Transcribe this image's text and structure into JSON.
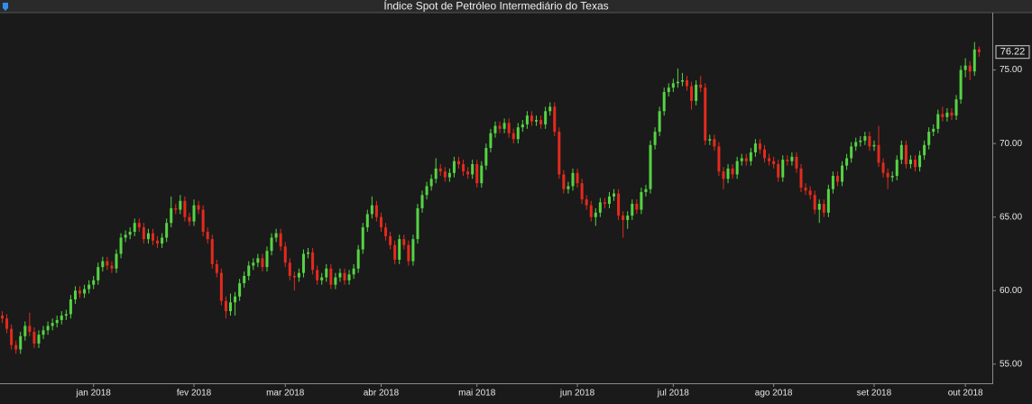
{
  "chart_data": {
    "type": "candlestick",
    "title": "Índice Spot de Petróleo Intermediário do Texas",
    "up_color": "#55d444",
    "down_color": "#e42a1d",
    "ylim": [
      53.7,
      78.9
    ],
    "yticks": [
      {
        "value": 55,
        "label": "55.00"
      },
      {
        "value": 60,
        "label": "60.00"
      },
      {
        "value": 65,
        "label": "65.00"
      },
      {
        "value": 70,
        "label": "70.00"
      },
      {
        "value": 75,
        "label": "75.00"
      }
    ],
    "categories": [
      null,
      null,
      null,
      null,
      null,
      null,
      null,
      null,
      null,
      null,
      null,
      null,
      null,
      null,
      null,
      null,
      null,
      null,
      null,
      null,
      "jan 2018",
      null,
      null,
      null,
      null,
      null,
      null,
      null,
      null,
      null,
      null,
      null,
      null,
      null,
      null,
      null,
      null,
      null,
      null,
      null,
      null,
      null,
      "fev 2018",
      null,
      null,
      null,
      null,
      null,
      null,
      null,
      null,
      null,
      null,
      null,
      null,
      null,
      null,
      null,
      null,
      null,
      null,
      null,
      "mar 2018",
      null,
      null,
      null,
      null,
      null,
      null,
      null,
      null,
      null,
      null,
      null,
      null,
      null,
      null,
      null,
      null,
      null,
      null,
      null,
      null,
      "abr 2018",
      null,
      null,
      null,
      null,
      null,
      null,
      null,
      null,
      null,
      null,
      null,
      null,
      null,
      null,
      null,
      null,
      null,
      null,
      null,
      null,
      "mai 2018",
      null,
      null,
      null,
      null,
      null,
      null,
      null,
      null,
      null,
      null,
      null,
      null,
      null,
      null,
      null,
      null,
      null,
      null,
      null,
      null,
      null,
      "jun 2018",
      null,
      null,
      null,
      null,
      null,
      null,
      null,
      null,
      null,
      null,
      null,
      null,
      null,
      null,
      null,
      null,
      null,
      null,
      null,
      null,
      "jul 2018",
      null,
      null,
      null,
      null,
      null,
      null,
      null,
      null,
      null,
      null,
      null,
      null,
      null,
      null,
      null,
      null,
      null,
      null,
      null,
      null,
      null,
      "ago 2018",
      null,
      null,
      null,
      null,
      null,
      null,
      null,
      null,
      null,
      null,
      null,
      null,
      null,
      null,
      null,
      null,
      null,
      null,
      null,
      null,
      null,
      "set 2018",
      null,
      null,
      null,
      null,
      null,
      null,
      null,
      null,
      null,
      null,
      null,
      null,
      null,
      null,
      null,
      null,
      null,
      null,
      null,
      "out 2018",
      null,
      null,
      null
    ],
    "open": [
      58.3,
      58.1,
      57.4,
      56.3,
      56.0,
      56.9,
      57.6,
      57.2,
      56.4,
      57.0,
      57.3,
      57.6,
      57.8,
      58.0,
      58.3,
      58.4,
      59.4,
      60.0,
      59.8,
      60.1,
      60.4,
      60.7,
      61.6,
      62.0,
      61.7,
      61.5,
      62.5,
      63.6,
      63.8,
      64.0,
      64.6,
      64.3,
      63.5,
      63.9,
      63.4,
      63.2,
      63.6,
      64.6,
      65.6,
      65.5,
      66.1,
      65.0,
      64.7,
      65.8,
      65.5,
      64.0,
      63.5,
      61.8,
      61.2,
      59.3,
      58.6,
      59.2,
      59.6,
      60.5,
      61.0,
      61.7,
      61.9,
      62.2,
      61.6,
      62.7,
      63.6,
      63.9,
      63.0,
      61.9,
      61.0,
      60.9,
      61.2,
      62.5,
      62.6,
      61.4,
      60.7,
      60.9,
      61.5,
      60.4,
      60.9,
      61.2,
      60.7,
      61.1,
      61.5,
      62.8,
      64.3,
      65.2,
      65.8,
      65.0,
      64.3,
      63.7,
      63.1,
      62.1,
      63.5,
      63.1,
      62.0,
      63.5,
      65.6,
      66.5,
      67.1,
      67.6,
      68.3,
      68.1,
      67.7,
      68.0,
      68.8,
      68.6,
      68.1,
      67.9,
      68.6,
      67.3,
      68.5,
      69.7,
      70.7,
      71.2,
      71.0,
      71.4,
      70.7,
      70.3,
      71.1,
      71.3,
      71.9,
      71.5,
      71.6,
      71.3,
      72.2,
      72.5,
      70.8,
      67.9,
      66.9,
      67.1,
      68.0,
      67.3,
      66.2,
      65.8,
      65.0,
      65.3,
      66.0,
      65.9,
      66.4,
      66.6,
      65.1,
      64.8,
      65.1,
      65.9,
      65.5,
      66.7,
      66.9,
      69.9,
      70.8,
      72.2,
      73.5,
      73.8,
      74.1,
      74.2,
      74.3,
      73.9,
      72.9,
      74.0,
      73.8,
      70.2,
      70.3,
      69.8,
      68.1,
      67.6,
      68.3,
      67.9,
      68.8,
      69.0,
      68.8,
      69.4,
      70.0,
      69.6,
      69.0,
      68.8,
      68.6,
      67.7,
      68.9,
      68.8,
      69.1,
      68.3,
      67.0,
      66.8,
      66.5,
      65.5,
      65.9,
      65.3,
      66.9,
      67.8,
      67.4,
      68.5,
      69.0,
      69.8,
      70.1,
      70.2,
      70.5,
      69.8,
      69.9,
      68.7,
      68.0,
      67.7,
      67.8,
      68.9,
      69.9,
      68.6,
      68.9,
      68.4,
      69.2,
      69.9,
      70.8,
      71.0,
      72.0,
      71.8,
      72.1,
      71.9,
      73.0,
      75.0,
      75.3,
      74.9,
      76.4
    ],
    "high": [
      58.6,
      58.4,
      57.7,
      56.6,
      57.2,
      57.9,
      58.5,
      57.5,
      57.3,
      57.6,
      57.9,
      58.1,
      58.3,
      58.6,
      58.7,
      59.7,
      60.3,
      60.3,
      60.4,
      60.7,
      61.0,
      61.9,
      62.3,
      62.3,
      62.0,
      62.8,
      63.9,
      64.1,
      64.3,
      64.9,
      64.9,
      64.6,
      64.2,
      64.2,
      63.7,
      63.9,
      64.9,
      66.4,
      65.9,
      66.5,
      66.4,
      65.3,
      66.2,
      66.1,
      65.8,
      64.3,
      63.8,
      62.1,
      61.5,
      59.6,
      59.8,
      59.9,
      60.8,
      61.3,
      62.0,
      62.2,
      62.5,
      62.5,
      63.0,
      63.9,
      64.2,
      64.2,
      63.3,
      62.2,
      61.3,
      61.5,
      62.8,
      62.9,
      62.9,
      61.7,
      61.2,
      61.8,
      61.8,
      61.2,
      61.5,
      61.5,
      61.4,
      61.8,
      63.1,
      64.6,
      65.5,
      66.4,
      66.1,
      65.3,
      64.6,
      64.0,
      63.4,
      63.8,
      63.8,
      63.4,
      63.8,
      65.9,
      66.8,
      67.4,
      67.9,
      69.0,
      68.6,
      68.4,
      68.3,
      69.1,
      69.1,
      68.9,
      68.4,
      68.9,
      68.9,
      68.8,
      70.0,
      71.0,
      71.5,
      71.5,
      71.7,
      71.7,
      71.0,
      71.4,
      71.6,
      72.2,
      72.2,
      71.9,
      71.9,
      72.5,
      72.8,
      72.8,
      71.1,
      68.2,
      67.4,
      68.3,
      68.3,
      67.6,
      66.5,
      66.1,
      65.6,
      66.3,
      66.3,
      66.7,
      66.9,
      66.9,
      65.4,
      65.4,
      66.2,
      66.2,
      67.0,
      67.2,
      70.2,
      71.1,
      72.5,
      73.8,
      74.1,
      74.4,
      75.1,
      74.8,
      74.6,
      74.2,
      74.3,
      74.6,
      74.1,
      70.6,
      70.6,
      70.1,
      68.4,
      68.6,
      68.6,
      69.1,
      69.3,
      69.3,
      69.7,
      70.3,
      70.3,
      69.9,
      69.3,
      69.1,
      68.9,
      69.2,
      69.2,
      69.4,
      69.4,
      68.6,
      67.3,
      67.1,
      66.8,
      66.2,
      66.2,
      67.2,
      68.1,
      68.1,
      68.8,
      69.3,
      70.1,
      70.4,
      70.5,
      70.8,
      70.8,
      70.2,
      71.2,
      69.0,
      68.3,
      68.1,
      69.2,
      70.2,
      70.2,
      69.2,
      69.2,
      69.5,
      70.2,
      71.1,
      71.3,
      72.3,
      72.5,
      72.4,
      72.4,
      73.3,
      75.3,
      75.8,
      75.6,
      76.9,
      76.6
    ],
    "low": [
      57.8,
      57.1,
      56.0,
      55.7,
      55.7,
      56.6,
      56.9,
      56.1,
      56.1,
      56.7,
      57.0,
      57.3,
      57.5,
      57.7,
      58.0,
      58.1,
      59.1,
      59.5,
      59.5,
      59.8,
      60.1,
      60.4,
      61.3,
      61.4,
      61.2,
      61.2,
      62.2,
      63.3,
      63.5,
      63.7,
      64.0,
      63.2,
      63.2,
      63.1,
      62.9,
      62.9,
      63.3,
      64.3,
      65.2,
      65.2,
      64.7,
      64.4,
      64.4,
      65.2,
      63.7,
      63.2,
      61.5,
      60.9,
      59.0,
      58.1,
      58.3,
      58.3,
      59.3,
      60.2,
      60.7,
      61.4,
      61.6,
      61.3,
      61.3,
      62.4,
      63.3,
      62.7,
      61.6,
      60.7,
      60.0,
      60.6,
      60.9,
      62.2,
      61.1,
      60.4,
      60.4,
      60.6,
      60.1,
      60.1,
      60.6,
      60.4,
      60.4,
      60.8,
      61.2,
      62.5,
      64.0,
      64.9,
      64.7,
      64.0,
      63.4,
      62.8,
      61.8,
      61.8,
      62.8,
      61.7,
      61.7,
      63.2,
      65.3,
      66.2,
      66.8,
      67.3,
      67.8,
      67.4,
      67.4,
      67.7,
      68.3,
      67.8,
      67.6,
      67.6,
      67.0,
      67.0,
      68.2,
      69.4,
      70.4,
      70.7,
      70.7,
      70.4,
      70.0,
      70.0,
      70.8,
      71.0,
      71.2,
      71.2,
      71.0,
      71.0,
      71.9,
      70.5,
      67.6,
      66.6,
      66.6,
      66.8,
      67.0,
      65.9,
      65.5,
      64.7,
      64.4,
      65.0,
      65.6,
      65.6,
      66.1,
      64.8,
      63.6,
      64.2,
      64.8,
      65.2,
      65.2,
      66.4,
      66.6,
      69.6,
      70.5,
      71.9,
      73.2,
      73.5,
      73.8,
      73.9,
      73.6,
      72.3,
      72.6,
      73.5,
      69.9,
      69.9,
      69.5,
      67.8,
      66.9,
      67.3,
      67.6,
      67.6,
      68.5,
      68.5,
      68.5,
      69.1,
      69.3,
      68.7,
      68.5,
      68.3,
      67.4,
      67.4,
      68.5,
      68.5,
      68.0,
      66.7,
      66.5,
      66.2,
      65.2,
      64.6,
      65.0,
      65.0,
      66.6,
      67.1,
      67.1,
      68.2,
      68.7,
      69.5,
      69.8,
      69.9,
      69.5,
      69.5,
      68.4,
      67.7,
      66.9,
      67.4,
      67.5,
      68.6,
      68.3,
      68.3,
      68.1,
      68.1,
      68.9,
      69.6,
      70.5,
      70.7,
      71.5,
      71.5,
      71.6,
      71.6,
      72.7,
      74.5,
      74.3,
      74.6,
      75.9
    ],
    "close": [
      58.1,
      57.4,
      56.3,
      56.0,
      56.9,
      57.6,
      57.2,
      56.4,
      57.0,
      57.3,
      57.6,
      57.8,
      58.0,
      58.3,
      58.4,
      59.4,
      60.0,
      59.8,
      60.1,
      60.4,
      60.7,
      61.6,
      62.0,
      61.7,
      61.5,
      62.5,
      63.6,
      63.8,
      64.0,
      64.6,
      64.3,
      63.5,
      63.9,
      63.4,
      63.2,
      63.6,
      64.6,
      65.6,
      65.5,
      66.1,
      65.0,
      64.7,
      65.8,
      65.5,
      64.0,
      63.5,
      61.8,
      61.2,
      59.3,
      58.6,
      59.2,
      59.6,
      60.5,
      61.0,
      61.7,
      61.9,
      62.2,
      61.6,
      62.7,
      63.6,
      63.9,
      63.0,
      61.9,
      61.0,
      60.9,
      61.2,
      62.5,
      62.6,
      61.4,
      60.7,
      60.9,
      61.5,
      60.4,
      60.9,
      61.2,
      60.7,
      61.1,
      61.5,
      62.8,
      64.3,
      65.2,
      65.8,
      65.0,
      64.3,
      63.7,
      63.1,
      62.1,
      63.5,
      63.1,
      62.0,
      63.5,
      65.6,
      66.5,
      67.1,
      67.6,
      68.3,
      68.1,
      67.7,
      68.0,
      68.8,
      68.6,
      68.1,
      67.9,
      68.6,
      67.3,
      68.5,
      69.7,
      70.7,
      71.2,
      71.0,
      71.4,
      70.7,
      70.3,
      71.1,
      71.3,
      71.9,
      71.5,
      71.6,
      71.3,
      72.2,
      72.5,
      70.8,
      67.9,
      66.9,
      67.1,
      68.0,
      67.3,
      66.2,
      65.8,
      65.0,
      65.3,
      66.0,
      65.9,
      66.4,
      66.6,
      65.1,
      64.8,
      65.1,
      65.9,
      65.5,
      66.7,
      66.9,
      69.9,
      70.8,
      72.2,
      73.5,
      73.8,
      74.1,
      74.2,
      74.3,
      73.9,
      72.9,
      74.0,
      73.8,
      70.2,
      70.3,
      69.8,
      68.1,
      67.6,
      68.3,
      67.9,
      68.8,
      69.0,
      68.8,
      69.4,
      70.0,
      69.6,
      69.0,
      68.8,
      68.6,
      67.7,
      68.9,
      68.8,
      69.1,
      68.3,
      67.0,
      66.8,
      66.5,
      65.5,
      65.9,
      65.3,
      66.9,
      67.8,
      67.4,
      68.5,
      69.0,
      69.8,
      70.1,
      70.2,
      70.5,
      69.8,
      69.9,
      68.7,
      68.0,
      67.7,
      67.8,
      68.9,
      69.9,
      68.6,
      68.9,
      68.4,
      69.2,
      69.9,
      70.8,
      71.0,
      72.0,
      71.8,
      72.1,
      71.9,
      73.0,
      75.0,
      75.3,
      74.9,
      76.4,
      76.22
    ]
  }
}
